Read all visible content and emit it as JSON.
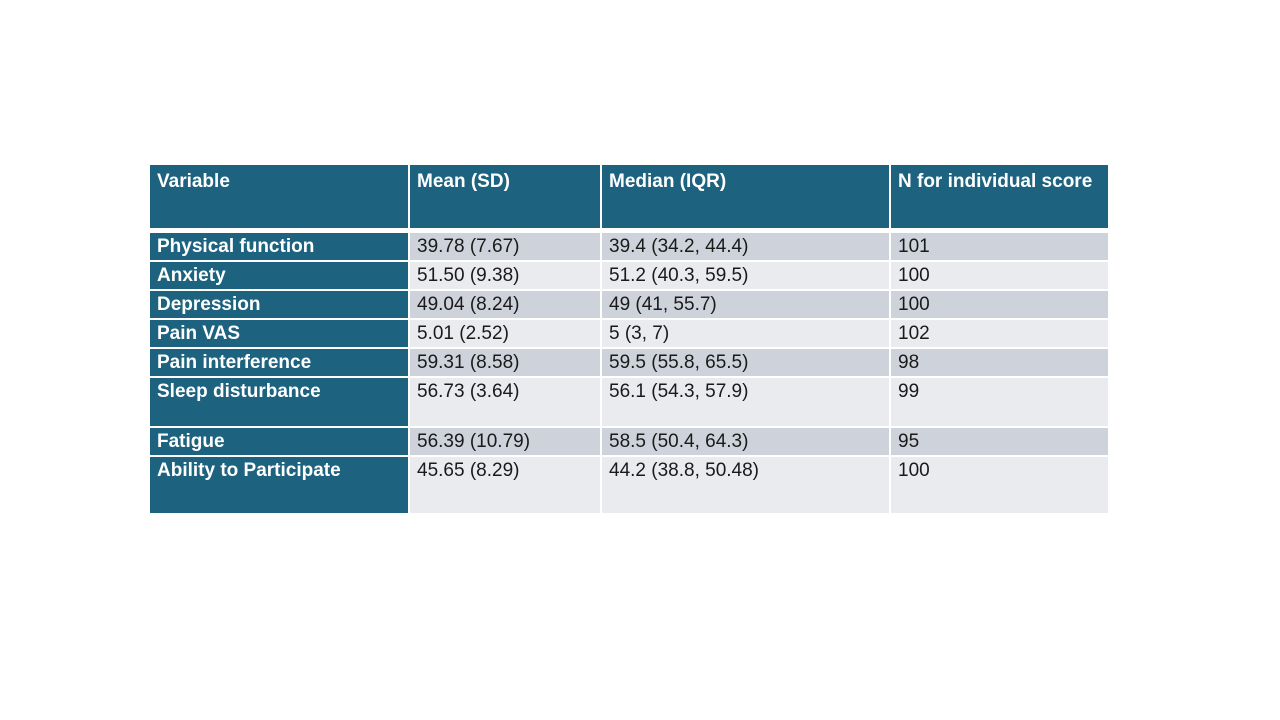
{
  "colors": {
    "header_bg": "#1d637f",
    "header_text": "#ffffff",
    "band_dark": "#ced2da",
    "band_light": "#e9ebef",
    "body_text": "#1a1a1a",
    "separator": "#ffffff",
    "slide_background": "#ffffff"
  },
  "chart_data": {
    "type": "table",
    "columns": [
      "Variable",
      "Mean (SD)",
      "Median (IQR)",
      "N for individual score"
    ],
    "rows": [
      [
        "Physical function",
        "39.78 (7.67)",
        "39.4 (34.2, 44.4)",
        "101"
      ],
      [
        "Anxiety",
        "51.50 (9.38)",
        "51.2 (40.3, 59.5)",
        "100"
      ],
      [
        "Depression",
        "49.04 (8.24)",
        "49 (41, 55.7)",
        "100"
      ],
      [
        "Pain VAS",
        "5.01 (2.52)",
        "5 (3, 7)",
        "102"
      ],
      [
        "Pain interference",
        "59.31 (8.58)",
        "59.5 (55.8, 65.5)",
        "98"
      ],
      [
        "Sleep disturbance",
        "56.73 (3.64)",
        "56.1 (54.3, 57.9)",
        "99"
      ],
      [
        "Fatigue",
        "56.39 (10.79)",
        "58.5 (50.4, 64.3)",
        "95"
      ],
      [
        "Ability to Participate",
        "45.65 (8.29)",
        "44.2 (38.8, 50.48)",
        "100"
      ]
    ]
  }
}
